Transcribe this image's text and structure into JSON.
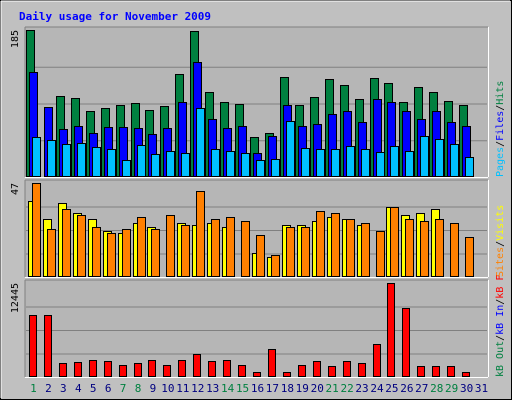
{
  "chart_data": {
    "type": "bar",
    "title": "Daily usage for November 2009",
    "days": [
      "1",
      "2",
      "3",
      "4",
      "5",
      "6",
      "7",
      "8",
      "9",
      "10",
      "11",
      "12",
      "13",
      "14",
      "15",
      "16",
      "17",
      "18",
      "19",
      "20",
      "21",
      "22",
      "23",
      "24",
      "25",
      "26",
      "27",
      "28",
      "29",
      "30",
      "31"
    ],
    "weekend_days": [
      "1",
      "7",
      "8",
      "14",
      "15",
      "21",
      "22",
      "28",
      "29"
    ],
    "colors": {
      "background": "#ffffff",
      "frame": "#c0c0c0",
      "panel": "#b6b6b6",
      "title": "#0000ff",
      "hits": "#008040",
      "files": "#0000ff",
      "pages": "#00c0ff",
      "visits": "#ffff00",
      "sites": "#ff8000",
      "kbin": "#0000ff",
      "kbout": "#008040",
      "kbf": "#ff0000",
      "weekday_label": "#000080",
      "weekend_label": "#008040"
    },
    "panels": [
      {
        "id": "hits-files-pages",
        "ymax_label": "185",
        "ymax": 185,
        "legend": [
          {
            "text": "Hits",
            "color": "#008040"
          },
          {
            "text": "/",
            "color": "#000000"
          },
          {
            "text": "Files",
            "color": "#0000ff"
          },
          {
            "text": "/",
            "color": "#000000"
          },
          {
            "text": "Pages",
            "color": "#00c0ff"
          }
        ],
        "series": [
          {
            "name": "Hits",
            "values": [
              185,
              0,
              102,
              100,
              83,
              87,
              90,
              93,
              84,
              89,
              129,
              184,
              107,
              94,
              92,
              50,
              56,
              126,
              91,
              101,
              123,
              116,
              98,
              124,
              118,
              94,
              113,
              107,
              96,
              90,
              0
            ]
          },
          {
            "name": "Files",
            "values": [
              132,
              88,
              60,
              64,
              55,
              63,
              63,
              62,
              54,
              62,
              94,
              145,
              73,
              62,
              64,
              30,
              52,
              90,
              64,
              67,
              79,
              83,
              69,
              98,
              95,
              83,
              73,
              83,
              69,
              64,
              0
            ]
          },
          {
            "name": "Pages",
            "values": [
              50,
              46,
              41,
              43,
              38,
              35,
              22,
              40,
              29,
              33,
              30,
              87,
              35,
              33,
              30,
              22,
              23,
              70,
              37,
              35,
              35,
              39,
              35,
              31,
              39,
              33,
              52,
              48,
              41,
              25,
              0
            ]
          }
        ]
      },
      {
        "id": "visits-sites",
        "ymax_label": "47",
        "ymax": 47,
        "legend": [
          {
            "text": "Visits",
            "color": "#ffff00"
          },
          {
            "text": "/",
            "color": "#000000"
          },
          {
            "text": "Sites",
            "color": "#ff8000"
          }
        ],
        "series": [
          {
            "name": "Visits",
            "values": [
              38,
              29,
              37,
              32,
              29,
              23,
              22,
              27,
              25,
              0,
              27,
              26,
              27,
              25,
              0,
              12,
              10,
              26,
              26,
              28,
              30,
              29,
              26,
              0,
              35,
              31,
              32,
              34,
              0,
              0,
              0
            ]
          },
          {
            "name": "Sites",
            "values": [
              47,
              24,
              34,
              31,
              25,
              22,
              24,
              30,
              24,
              31,
              26,
              43,
              29,
              30,
              28,
              21,
              11,
              25,
              25,
              33,
              32,
              29,
              27,
              23,
              35,
              29,
              28,
              29,
              27,
              20,
              0
            ]
          }
        ]
      },
      {
        "id": "kbytes",
        "ymax_label": "12445",
        "ymax": 12445,
        "legend": [
          {
            "text": "kB F",
            "color": "#ff0000"
          },
          {
            "text": "/",
            "color": "#000000"
          },
          {
            "text": "kB In",
            "color": "#0000ff"
          },
          {
            "text": "/",
            "color": "#000000"
          },
          {
            "text": "kB Out",
            "color": "#008040"
          }
        ],
        "series": [
          {
            "name": "kB F",
            "values": [
              8160,
              8160,
              1788,
              1983,
              2304,
              2057,
              1638,
              1788,
              2303,
              1638,
              2304,
              2985,
              2109,
              2304,
              1638,
              648,
              3668,
              648,
              1638,
              2108,
              1450,
              2108,
              1788,
              4343,
              12445,
              9176,
              1450,
              1450,
              1450,
              649,
              0
            ]
          }
        ]
      }
    ]
  }
}
